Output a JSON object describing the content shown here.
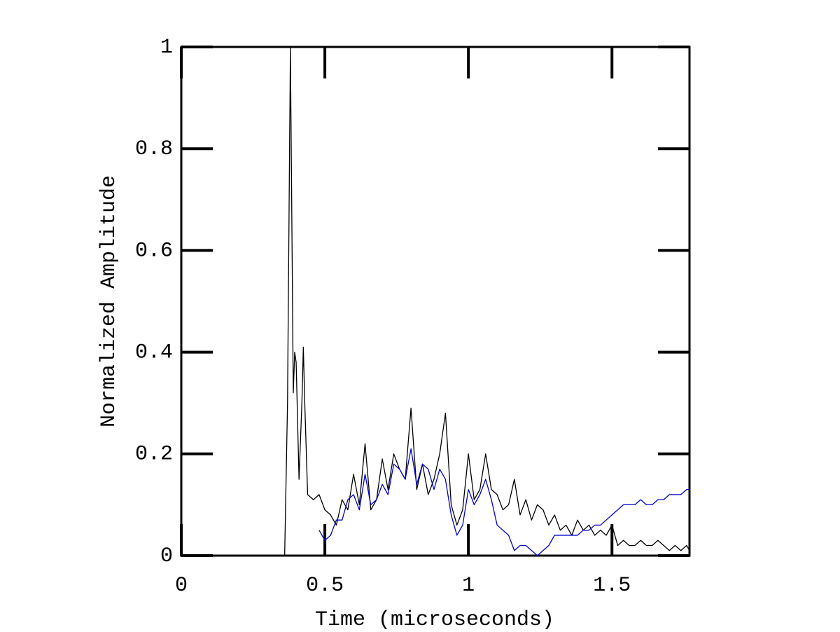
{
  "chart_data": {
    "type": "line",
    "x_label": "Time (microseconds)",
    "y_label": "Normalized Amplitude",
    "x": [
      0,
      0.1,
      0.2,
      0.3,
      0.36,
      0.37,
      0.38,
      0.39,
      0.395,
      0.4,
      0.41,
      0.42,
      0.425,
      0.43,
      0.44,
      0.46,
      0.48,
      0.5,
      0.52,
      0.54,
      0.56,
      0.58,
      0.6,
      0.62,
      0.64,
      0.66,
      0.68,
      0.7,
      0.72,
      0.74,
      0.76,
      0.78,
      0.8,
      0.82,
      0.84,
      0.86,
      0.88,
      0.9,
      0.92,
      0.94,
      0.96,
      0.98,
      1,
      1.02,
      1.04,
      1.06,
      1.08,
      1.1,
      1.12,
      1.14,
      1.16,
      1.18,
      1.2,
      1.22,
      1.24,
      1.26,
      1.28,
      1.3,
      1.32,
      1.34,
      1.36,
      1.38,
      1.4,
      1.42,
      1.44,
      1.46,
      1.48,
      1.5,
      1.52,
      1.54,
      1.56,
      1.58,
      1.6,
      1.62,
      1.64,
      1.66,
      1.68,
      1.7,
      1.72,
      1.74,
      1.76,
      1.77
    ],
    "series": [
      {
        "color": "#000000",
        "values": [
          0,
          0,
          0,
          0,
          0,
          0.3,
          1,
          0.32,
          0.4,
          0.38,
          0.15,
          0.3,
          0.41,
          0.3,
          0.12,
          0.11,
          0.12,
          0.09,
          0.08,
          0.06,
          0.11,
          0.09,
          0.16,
          0.1,
          0.22,
          0.09,
          0.11,
          0.19,
          0.13,
          0.2,
          0.17,
          0.15,
          0.29,
          0.13,
          0.18,
          0.12,
          0.15,
          0.2,
          0.28,
          0.1,
          0.06,
          0.09,
          0.2,
          0.11,
          0.13,
          0.2,
          0.13,
          0.12,
          0.09,
          0.1,
          0.15,
          0.08,
          0.11,
          0.07,
          0.1,
          0.09,
          0.06,
          0.08,
          0.05,
          0.06,
          0.04,
          0.07,
          0.05,
          0.06,
          0.04,
          0.05,
          0.04,
          0.06,
          0.02,
          0.03,
          0.02,
          0.02,
          0.03,
          0.02,
          0.02,
          0.03,
          0.02,
          0.01,
          0.02,
          0.01,
          0.02,
          0.01
        ]
      },
      {
        "color": "#0000cc",
        "values": [
          null,
          null,
          null,
          null,
          null,
          null,
          null,
          null,
          null,
          null,
          null,
          null,
          null,
          null,
          null,
          null,
          0.05,
          0.03,
          0.04,
          0.07,
          0.07,
          0.11,
          0.12,
          0.09,
          0.16,
          0.1,
          0.11,
          0.14,
          0.12,
          0.18,
          0.17,
          0.15,
          0.21,
          0.14,
          0.18,
          0.17,
          0.13,
          0.17,
          0.15,
          0.08,
          0.04,
          0.06,
          0.13,
          0.1,
          0.12,
          0.15,
          0.11,
          0.06,
          0.05,
          0.04,
          0.01,
          0.02,
          0.02,
          0.01,
          0,
          0.01,
          0.02,
          0.04,
          0.04,
          0.04,
          0.04,
          0.04,
          0.05,
          0.05,
          0.06,
          0.06,
          0.07,
          0.08,
          0.09,
          0.1,
          0.1,
          0.1,
          0.11,
          0.1,
          0.1,
          0.11,
          0.11,
          0.12,
          0.12,
          0.12,
          0.13,
          0.13
        ]
      }
    ],
    "xlim": [
      0,
      1.77
    ],
    "ylim": [
      0,
      1
    ],
    "xticks": [
      0,
      0.5,
      1,
      1.5
    ],
    "yticks": [
      0,
      0.2,
      0.4,
      0.6,
      0.8,
      1
    ]
  }
}
